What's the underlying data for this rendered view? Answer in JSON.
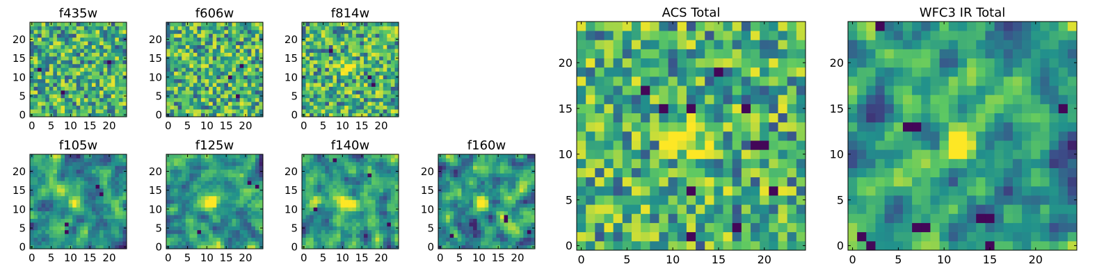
{
  "chart_data": [
    {
      "type": "heatmap",
      "title": "f435w",
      "xlim": [
        -0.5,
        24.5
      ],
      "ylim": [
        -0.5,
        24.5
      ],
      "xticks": [
        0,
        5,
        10,
        15,
        20
      ],
      "yticks": [
        0,
        5,
        10,
        15,
        20
      ],
      "grid": [
        25,
        25
      ],
      "noise": "uniform",
      "smooth": 0,
      "seed": 11,
      "peak": [
        11,
        11,
        0
      ],
      "dark_pixels": [
        [
          2,
          12
        ],
        [
          8,
          6
        ],
        [
          20,
          14
        ]
      ]
    },
    {
      "type": "heatmap",
      "title": "f606w",
      "xlim": [
        -0.5,
        24.5
      ],
      "ylim": [
        -0.5,
        24.5
      ],
      "xticks": [
        0,
        5,
        10,
        15,
        20
      ],
      "yticks": [
        0,
        5,
        10,
        15,
        20
      ],
      "grid": [
        25,
        25
      ],
      "noise": "uniform",
      "smooth": 0,
      "seed": 23,
      "peak": [
        11,
        11,
        0
      ],
      "dark_pixels": [
        [
          16,
          10
        ],
        [
          19,
          13
        ],
        [
          18,
          5
        ]
      ]
    },
    {
      "type": "heatmap",
      "title": "f814w",
      "xlim": [
        -0.5,
        24.5
      ],
      "ylim": [
        -0.5,
        24.5
      ],
      "xticks": [
        0,
        5,
        10,
        15,
        20
      ],
      "yticks": [
        0,
        5,
        10,
        15,
        20
      ],
      "grid": [
        25,
        25
      ],
      "noise": "uniform",
      "smooth": 0,
      "seed": 37,
      "peak": [
        11,
        12,
        0.45
      ],
      "dark_pixels": [
        [
          17,
          10
        ],
        [
          18,
          8
        ],
        [
          7,
          17
        ]
      ]
    },
    {
      "type": "heatmap",
      "title": "f105w",
      "xlim": [
        -0.5,
        24.5
      ],
      "ylim": [
        -0.5,
        24.5
      ],
      "xticks": [
        0,
        5,
        10,
        15,
        20
      ],
      "yticks": [
        0,
        5,
        10,
        15,
        20
      ],
      "grid": [
        25,
        25
      ],
      "noise": "smooth",
      "smooth": 1,
      "seed": 41,
      "peak": [
        11,
        12,
        0.6
      ],
      "dark_pixels": [
        [
          9,
          4
        ],
        [
          9,
          6
        ],
        [
          17,
          16
        ],
        [
          18,
          14
        ]
      ]
    },
    {
      "type": "heatmap",
      "title": "f125w",
      "xlim": [
        -0.5,
        24.5
      ],
      "ylim": [
        -0.5,
        24.5
      ],
      "xticks": [
        0,
        5,
        10,
        15,
        20
      ],
      "yticks": [
        0,
        5,
        10,
        15,
        20
      ],
      "grid": [
        25,
        25
      ],
      "noise": "smooth",
      "smooth": 1,
      "seed": 53,
      "peak": [
        11,
        12,
        0.6
      ],
      "dark_pixels": [
        [
          8,
          4
        ],
        [
          21,
          17
        ],
        [
          23,
          16
        ]
      ]
    },
    {
      "type": "heatmap",
      "title": "f140w",
      "xlim": [
        -0.5,
        24.5
      ],
      "ylim": [
        -0.5,
        24.5
      ],
      "xticks": [
        0,
        5,
        10,
        15,
        20
      ],
      "yticks": [
        0,
        5,
        10,
        15,
        20
      ],
      "grid": [
        25,
        25
      ],
      "noise": "smooth",
      "smooth": 1,
      "seed": 67,
      "peak": [
        11,
        12,
        0.55
      ],
      "dark_pixels": [
        [
          8,
          23
        ],
        [
          3,
          10
        ],
        [
          17,
          19
        ],
        [
          22,
          6
        ]
      ]
    },
    {
      "type": "heatmap",
      "title": "f160w",
      "xlim": [
        -0.5,
        24.5
      ],
      "ylim": [
        -0.5,
        24.5
      ],
      "xticks": [
        0,
        5,
        10,
        15,
        20
      ],
      "yticks": [
        0,
        5,
        10,
        15,
        20
      ],
      "grid": [
        25,
        25
      ],
      "noise": "smooth",
      "smooth": 1,
      "seed": 79,
      "peak": [
        11,
        12,
        0.7
      ],
      "dark_pixels": [
        [
          17,
          7
        ],
        [
          17,
          8
        ],
        [
          3,
          3
        ],
        [
          23,
          4
        ]
      ]
    },
    {
      "type": "heatmap",
      "title": "ACS Total",
      "xlim": [
        -0.5,
        24.5
      ],
      "ylim": [
        -0.5,
        24.5
      ],
      "xticks": [
        0,
        5,
        10,
        15,
        20
      ],
      "yticks": [
        0,
        5,
        10,
        15,
        20
      ],
      "grid": [
        25,
        25
      ],
      "noise": "uniform",
      "smooth": 0,
      "seed": 97,
      "peak": [
        11.5,
        11.5,
        0.55
      ],
      "dark_pixels": [
        [
          15,
          19
        ],
        [
          7,
          17
        ],
        [
          9,
          15
        ],
        [
          12,
          15
        ],
        [
          18,
          15
        ],
        [
          19,
          11
        ],
        [
          20,
          11
        ],
        [
          12,
          6
        ],
        [
          21,
          6
        ],
        [
          12,
          1
        ],
        [
          17,
          2
        ]
      ]
    },
    {
      "type": "heatmap",
      "title": "WFC3 IR Total",
      "xlim": [
        -0.5,
        24.5
      ],
      "ylim": [
        -0.5,
        24.5
      ],
      "xticks": [
        0,
        5,
        10,
        15,
        20
      ],
      "yticks": [
        0,
        5,
        10,
        15,
        20
      ],
      "grid": [
        25,
        25
      ],
      "noise": "smooth",
      "smooth": 1,
      "seed": 113,
      "peak": [
        11.5,
        11.5,
        0.9
      ],
      "dark_pixels": [
        [
          3,
          24
        ],
        [
          7,
          13
        ],
        [
          6,
          13
        ],
        [
          8,
          2
        ],
        [
          7,
          2
        ],
        [
          14,
          3
        ],
        [
          15,
          3
        ],
        [
          2,
          0
        ],
        [
          15,
          0
        ],
        [
          23,
          15
        ],
        [
          1,
          1
        ]
      ]
    }
  ],
  "colors": {
    "viridis": [
      "#440154",
      "#3b528b",
      "#21918c",
      "#5ec962",
      "#fde725"
    ],
    "axes": "#000000",
    "background": "#ffffff"
  }
}
